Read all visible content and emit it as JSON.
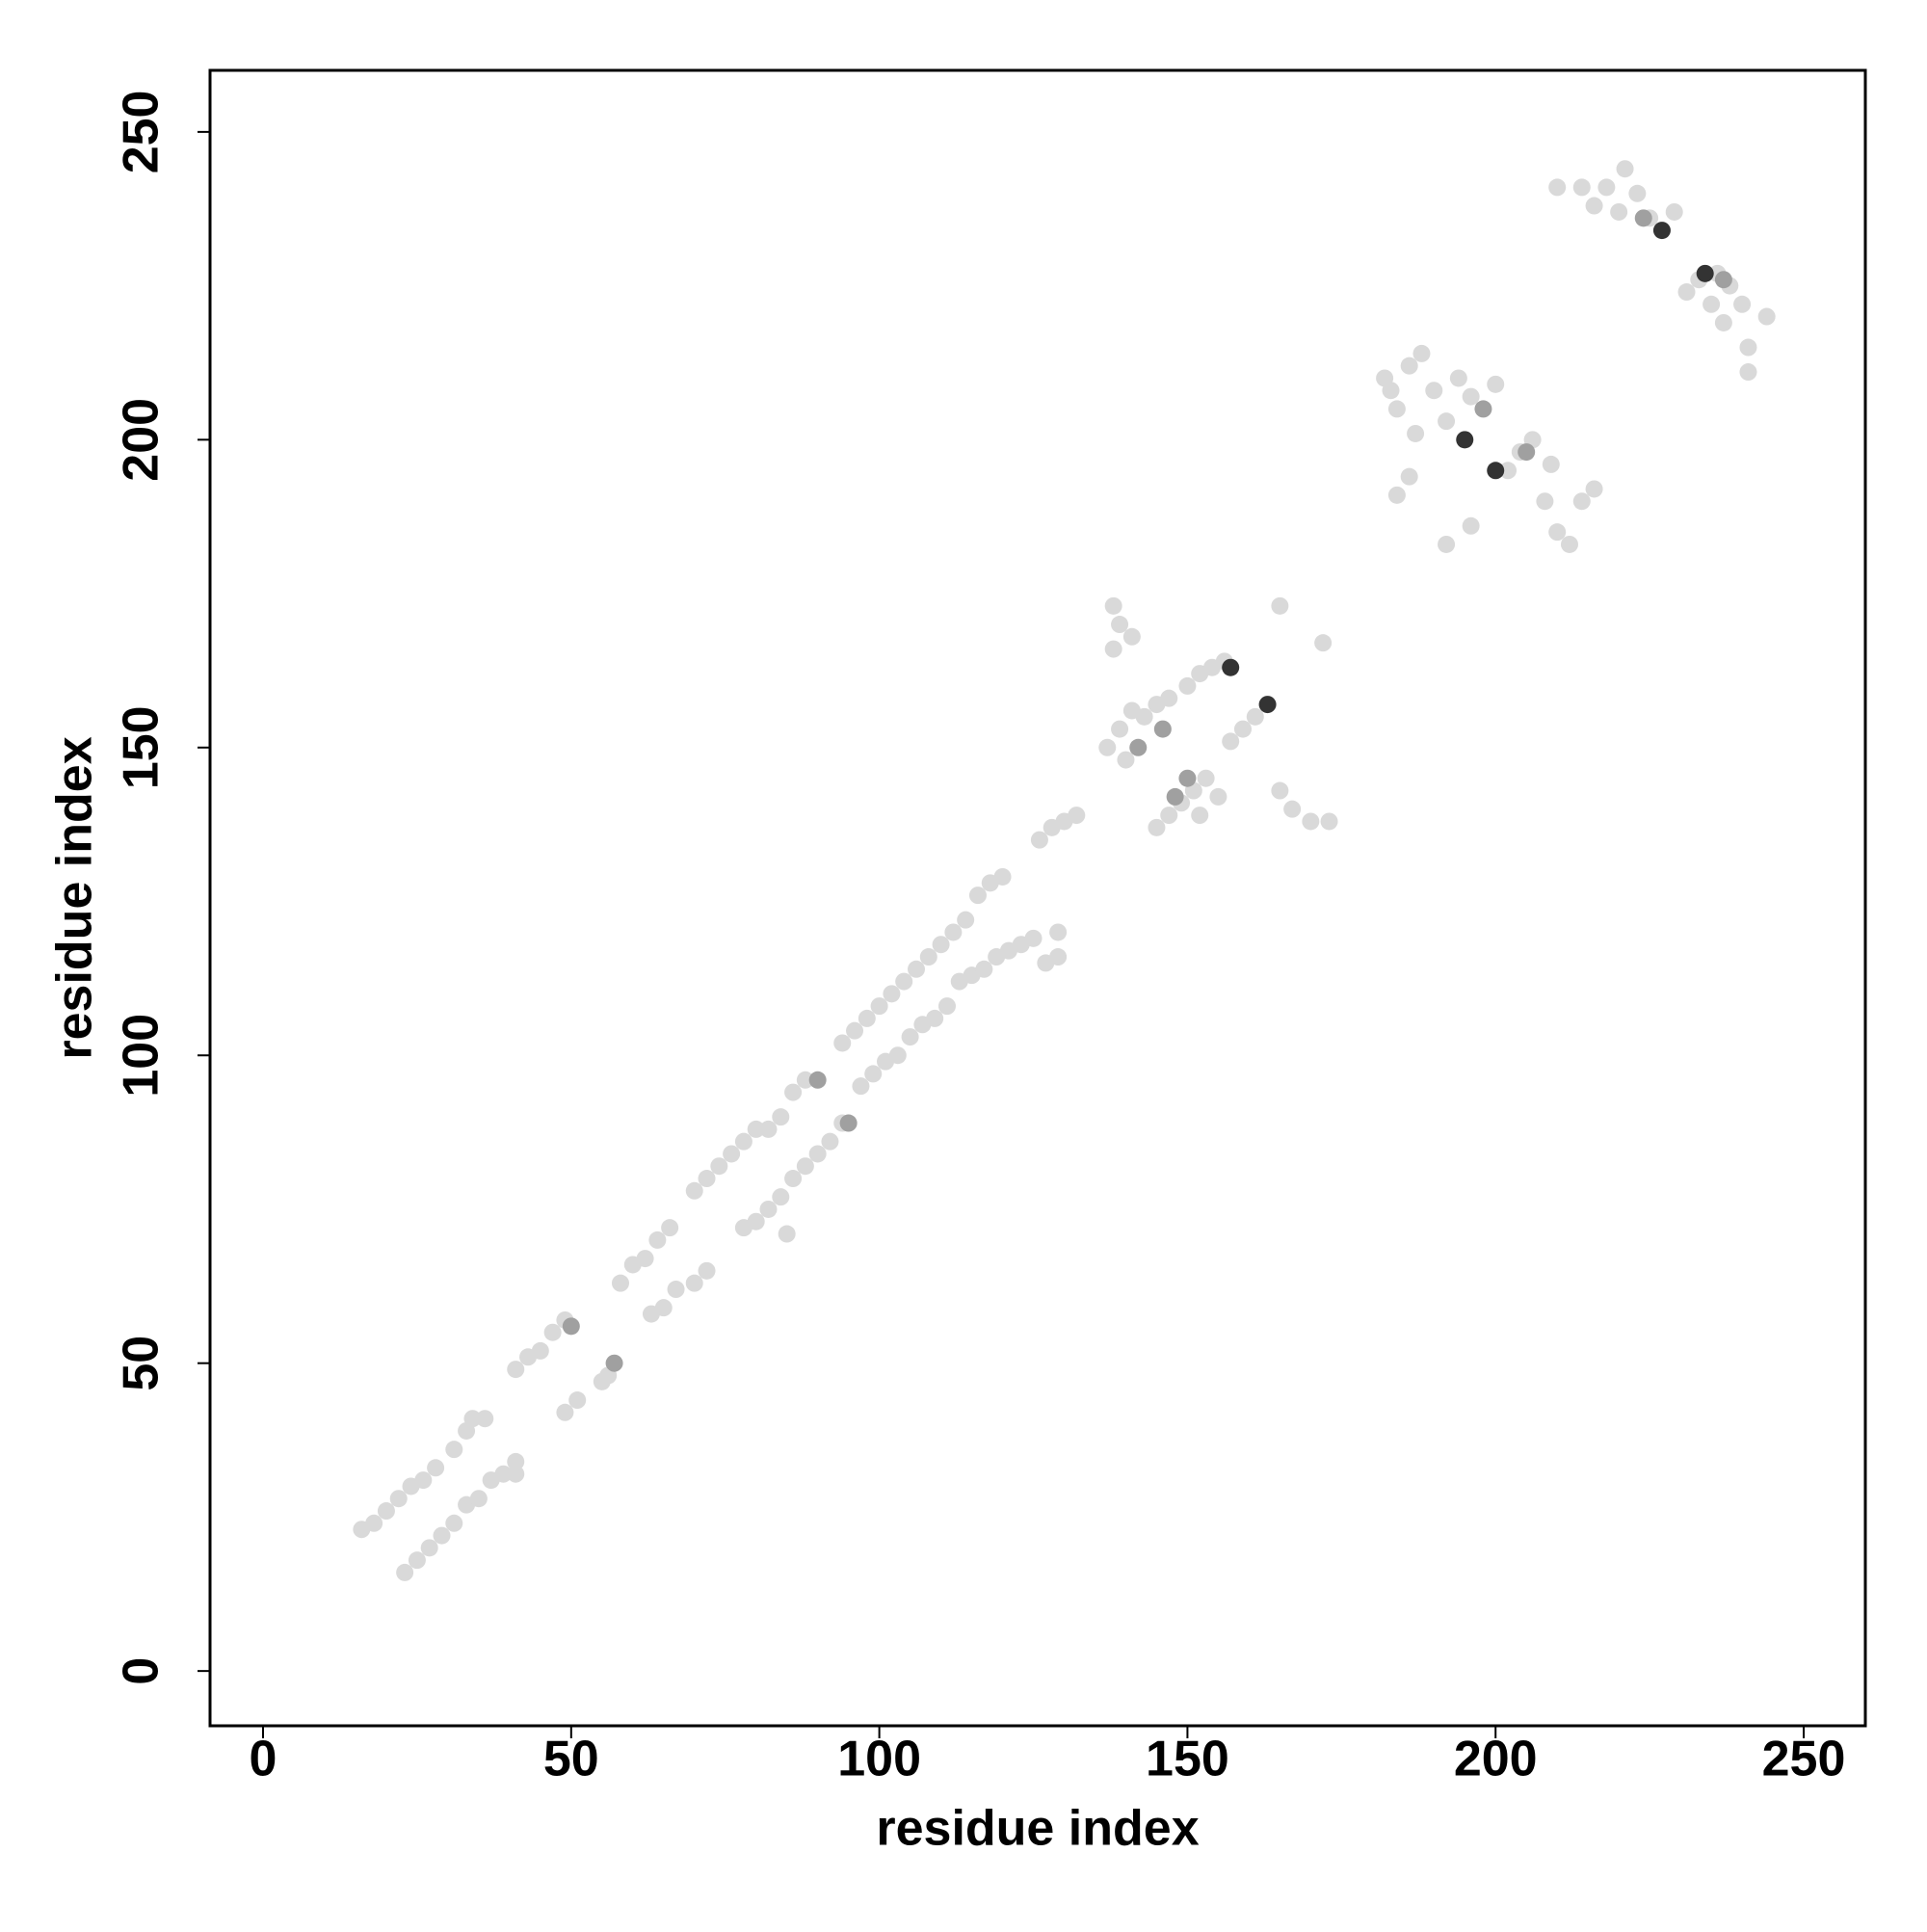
{
  "chart_data": {
    "type": "scatter",
    "xlabel": "residue index",
    "ylabel": "residue index",
    "xlim": [
      -8.6,
      260
    ],
    "ylim": [
      -8.9,
      260
    ],
    "xticks": [
      0,
      50,
      100,
      150,
      200,
      250
    ],
    "yticks": [
      0,
      50,
      100,
      150,
      200,
      250
    ],
    "series": [
      {
        "color": "#d9d9d9",
        "x": [
          16,
          18,
          20,
          22,
          24,
          26,
          28,
          31,
          33,
          34,
          36,
          41,
          43,
          45,
          47,
          49,
          58,
          60,
          62,
          64,
          66,
          70,
          72,
          74,
          76,
          78,
          80,
          82,
          84,
          86,
          88,
          94,
          96,
          98,
          100,
          102,
          104,
          106,
          108,
          110,
          112,
          114,
          116,
          118,
          120,
          126,
          128,
          130,
          132,
          137,
          139,
          141,
          143,
          145,
          140,
          147,
          150,
          152,
          154,
          156,
          138,
          139,
          141,
          138,
          165,
          172,
          182,
          184,
          186,
          188,
          190,
          192,
          194,
          196,
          200,
          183,
          187,
          210,
          214,
          218,
          221,
          223,
          225,
          229,
          220,
          216,
          23,
          25,
          27,
          29,
          31,
          33,
          35,
          37,
          39,
          41,
          41,
          49,
          51,
          55,
          56,
          63,
          65,
          67,
          70,
          72,
          78,
          80,
          82,
          84,
          86,
          88,
          90,
          92,
          94,
          85,
          97,
          99,
          101,
          103,
          105,
          107,
          109,
          111,
          113,
          115,
          117,
          119,
          121,
          123,
          125,
          127,
          129,
          129,
          145,
          147,
          149,
          151,
          153,
          152,
          155,
          157,
          159,
          161,
          165,
          167,
          170,
          173,
          192,
          196,
          202,
          204,
          206,
          208,
          210,
          212,
          214,
          216,
          209,
          184,
          186,
          236,
          238,
          240,
          237,
          241,
          241,
          244,
          231,
          235,
          233
        ],
        "y": [
          23,
          24,
          26,
          28,
          30,
          31,
          33,
          36,
          39,
          41,
          41,
          49,
          51,
          52,
          55,
          57,
          63,
          66,
          67,
          70,
          72,
          78,
          80,
          82,
          84,
          86,
          88,
          88,
          90,
          94,
          96,
          102,
          104,
          106,
          108,
          110,
          112,
          114,
          116,
          118,
          120,
          122,
          126,
          128,
          129,
          135,
          137,
          138,
          139,
          150,
          153,
          156,
          155,
          157,
          148,
          158,
          160,
          162,
          163,
          164,
          166,
          170,
          168,
          173,
          173,
          167,
          210,
          205,
          212,
          214,
          208,
          203,
          210,
          207,
          209,
          208,
          201,
          241,
          241,
          241,
          244,
          240,
          236,
          237,
          237,
          238,
          16,
          18,
          20,
          22,
          24,
          27,
          28,
          31,
          32,
          34,
          32,
          42,
          44,
          47,
          48,
          58,
          59,
          62,
          63,
          65,
          72,
          73,
          75,
          77,
          80,
          82,
          84,
          86,
          89,
          71,
          95,
          97,
          99,
          100,
          103,
          105,
          106,
          108,
          112,
          113,
          114,
          116,
          117,
          118,
          119,
          115,
          116,
          120,
          137,
          139,
          141,
          143,
          145,
          139,
          142,
          151,
          153,
          155,
          143,
          140,
          138,
          138,
          183,
          186,
          195,
          198,
          200,
          190,
          185,
          183,
          190,
          192,
          196,
          191,
          194,
          227,
          225,
          222,
          219,
          211,
          215,
          220,
          224,
          222,
          226
        ]
      },
      {
        "color": "#a0a0a0",
        "x": [
          142,
          146,
          150,
          148,
          90,
          95,
          198,
          205,
          224,
          237,
          57,
          50
        ],
        "y": [
          150,
          153,
          145,
          142,
          96,
          89,
          205,
          198,
          236,
          226,
          50,
          56
        ]
      },
      {
        "color": "#333333",
        "x": [
          157,
          163,
          195,
          200,
          227,
          234
        ],
        "y": [
          163,
          157,
          200,
          195,
          234,
          227
        ]
      }
    ]
  }
}
